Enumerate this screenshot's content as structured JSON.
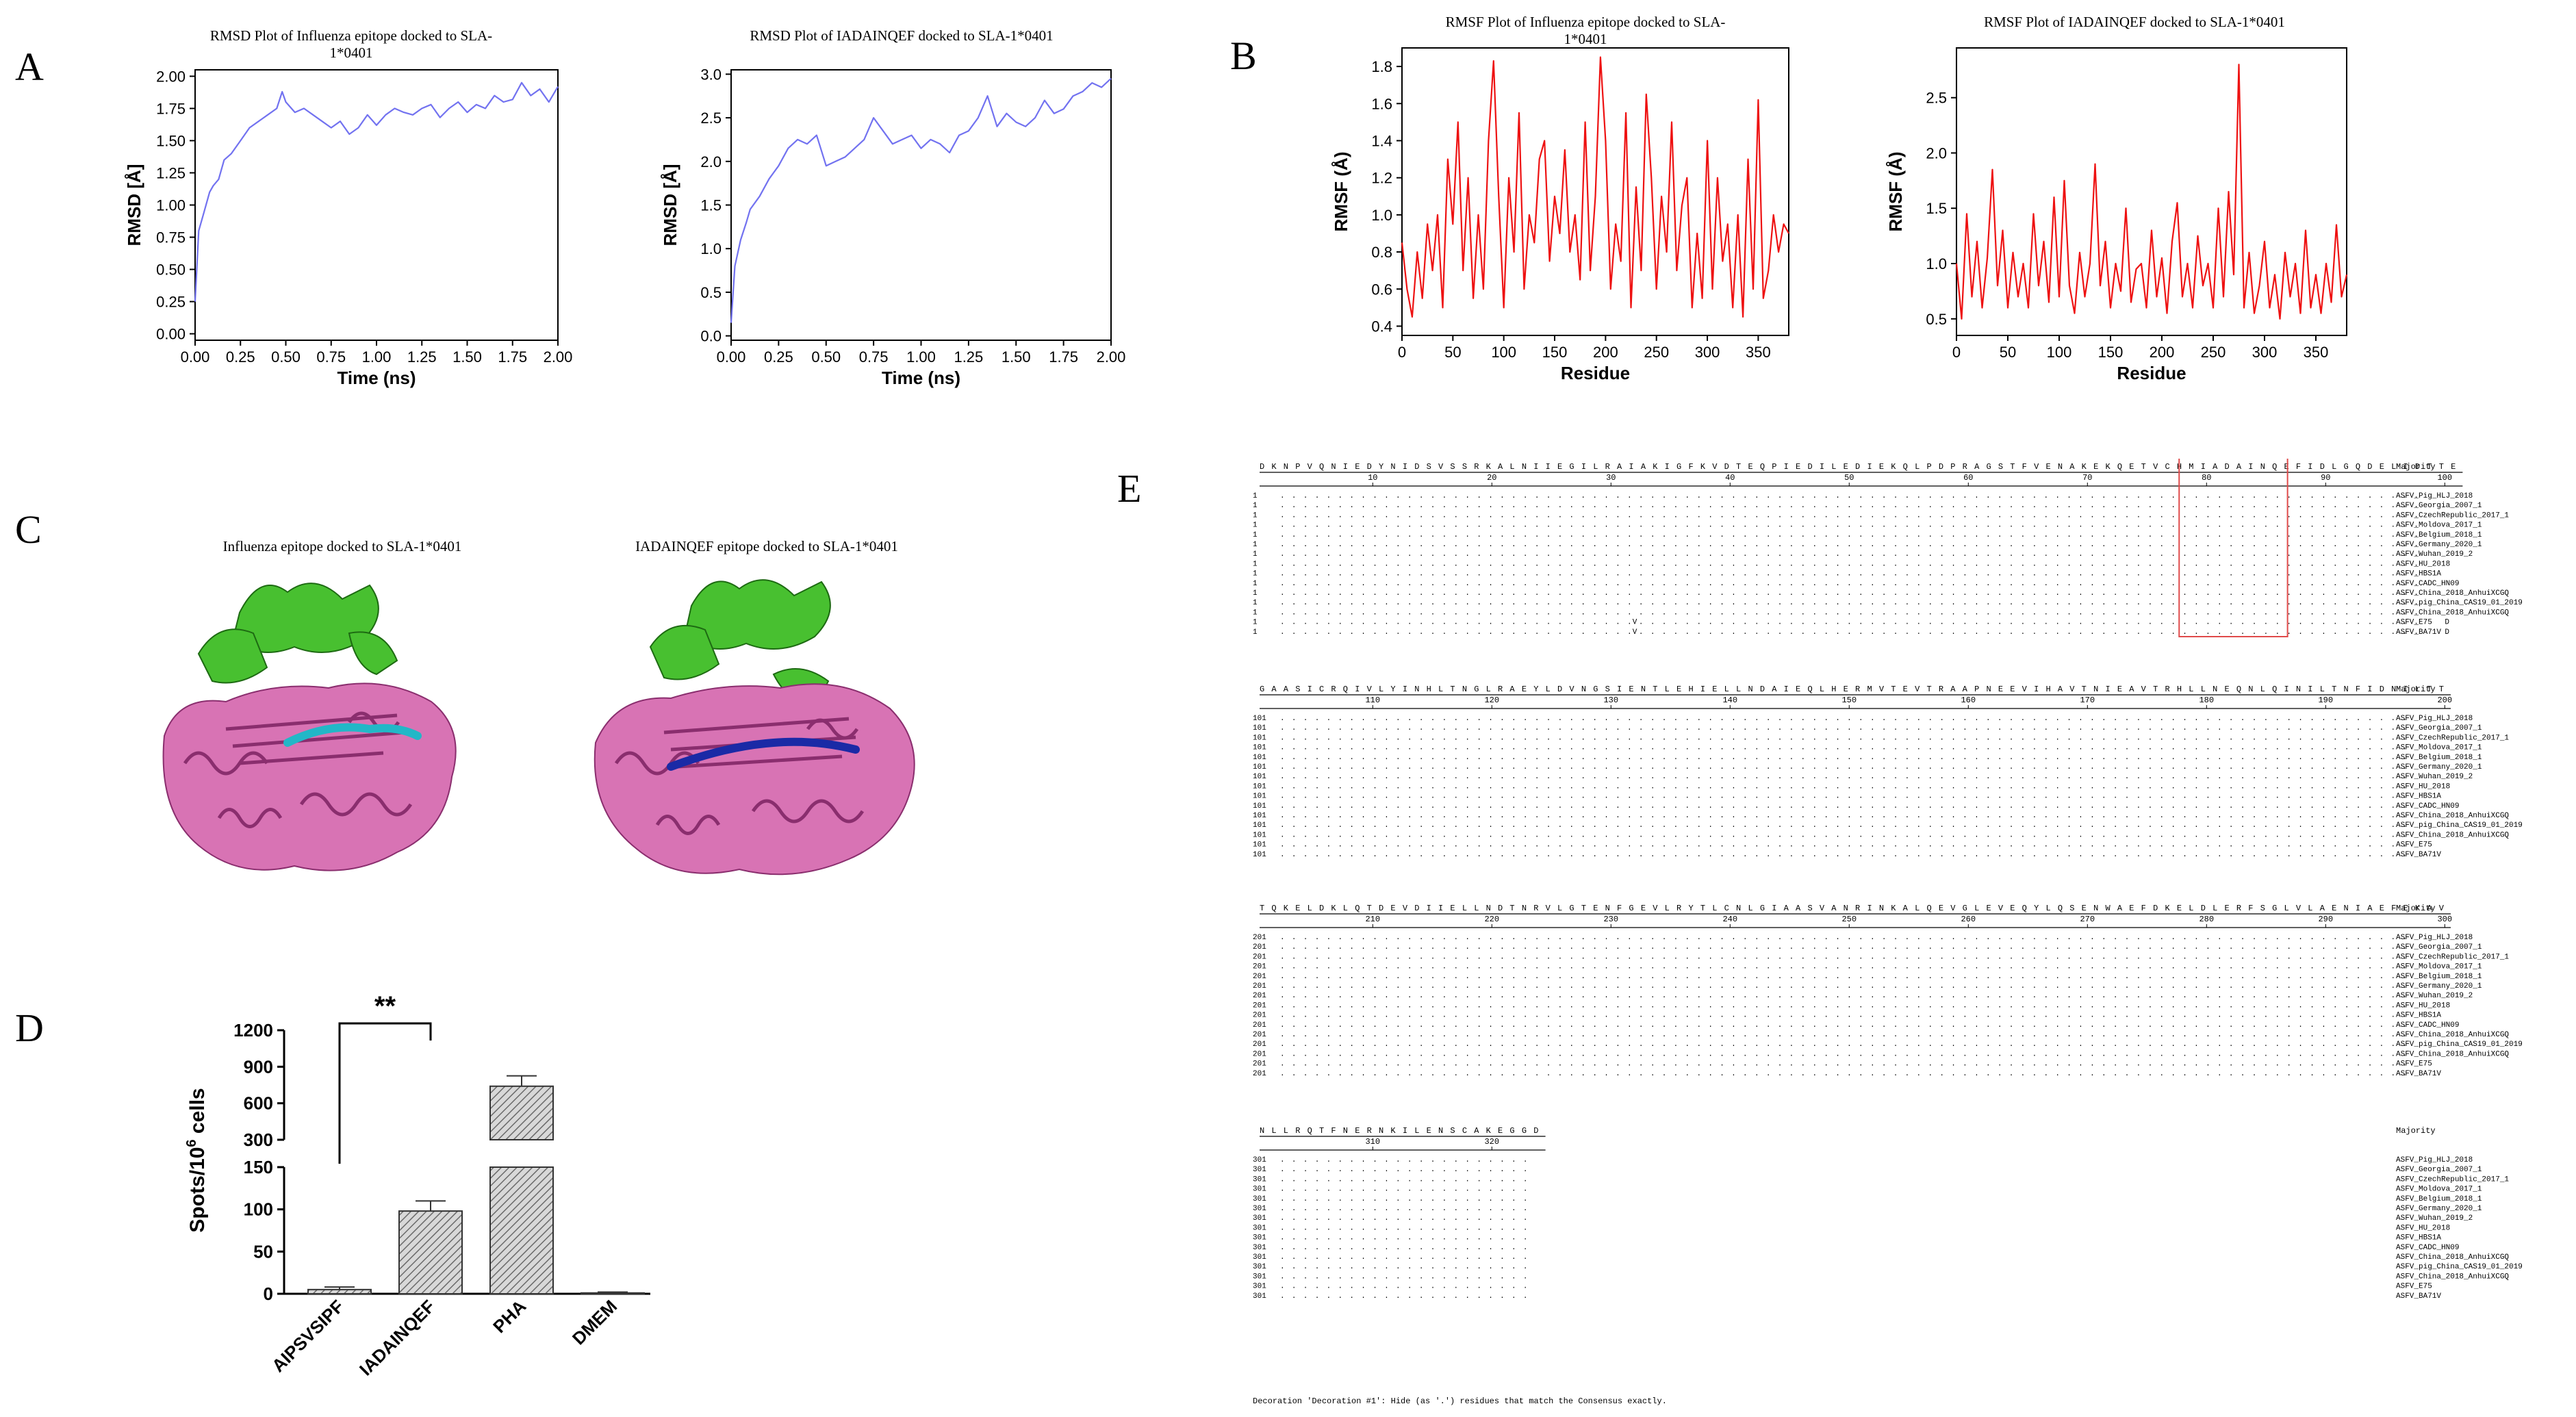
{
  "panels": {
    "A": {
      "letter": "A",
      "plots": [
        {
          "title": "RMSD  Plot of Influenza  epitope docked to SLA-1*0401",
          "xlabel": "Time (ns)",
          "ylabel": "RMSD [Å]",
          "xticks": [
            "0.00",
            "0.25",
            "0.50",
            "0.75",
            "1.00",
            "1.25",
            "1.50",
            "1.75",
            "2.00"
          ],
          "yticks": [
            "0.00",
            "0.25",
            "0.50",
            "0.75",
            "1.00",
            "1.25",
            "1.50",
            "1.75",
            "2.00"
          ]
        },
        {
          "title": "RMSD  Plot of IADAINQEF  docked to SLA-1*0401",
          "xlabel": "Time (ns)",
          "ylabel": "RMSD [Å]",
          "xticks": [
            "0.00",
            "0.25",
            "0.50",
            "0.75",
            "1.00",
            "1.25",
            "1.50",
            "1.75",
            "2.00"
          ],
          "yticks": [
            "0.0",
            "0.5",
            "1.0",
            "1.5",
            "2.0",
            "2.5",
            "3.0"
          ]
        }
      ]
    },
    "B": {
      "letter": "B",
      "plots": [
        {
          "title": "RMSF  Plot of Influenza  epitope docked to SLA-1*0401",
          "xlabel": "Residue",
          "ylabel": "RMSF (Å)",
          "xticks": [
            "0",
            "50",
            "100",
            "150",
            "200",
            "250",
            "300",
            "350"
          ],
          "yticks": [
            "0.4",
            "0.6",
            "0.8",
            "1.0",
            "1.2",
            "1.4",
            "1.6",
            "1.8"
          ]
        },
        {
          "title": "RMSF  Plot of IADAINQEF  docked to SLA-1*0401",
          "xlabel": "Residue",
          "ylabel": "RMSF (Å)",
          "xticks": [
            "0",
            "50",
            "100",
            "150",
            "200",
            "250",
            "300",
            "350"
          ],
          "yticks": [
            "0.5",
            "1.0",
            "1.5",
            "2.0",
            "2.5"
          ]
        }
      ]
    },
    "C": {
      "letter": "C",
      "captions": [
        "Influenza  epitope docked to SLA-1*0401",
        "IADAINQEF  epitope docked to SLA-1*0401"
      ]
    },
    "D": {
      "letter": "D",
      "significance": "**",
      "ylabel_main": "Spots/10",
      "ylabel_sup": "6",
      "ylabel_tail": " cells",
      "yticks_upper": [
        "300",
        "600",
        "900",
        "1200"
      ],
      "yticks_lower": [
        "0",
        "50",
        "100",
        "150"
      ],
      "categories": [
        "AIPSVSIPF",
        "IADAINQEF",
        "PHA",
        "DMEM"
      ]
    },
    "E": {
      "letter": "E",
      "majority_label": "Majority",
      "blocks": [
        {
          "start": "1",
          "consensus": "DKNPVQNIEDYNIDSVSSRKALNIIEGILRAIAKIGFKVDTEQPIEDILEDIEKQLPDPRAGSTFVENAKEKQETVCHMIADAINQEFIDLGQDELIDTTE",
          "ticks": [
            "10",
            "20",
            "30",
            "40",
            "50",
            "60",
            "70",
            "80",
            "90",
            "100"
          ]
        },
        {
          "start": "101",
          "consensus": "GAASICRQIVLYINHLTNGLRAEYLDVNGSIENTLEHIELLNDAIEQLHERMVTEVTRAAPNEEVIHAVTNIEAVTRHLLNEQNLQINILTNFIDNILTT",
          "ticks": [
            "110",
            "120",
            "130",
            "140",
            "150",
            "160",
            "170",
            "180",
            "190",
            "200"
          ]
        },
        {
          "start": "201",
          "consensus": "TQKELDKLQTDEVDIIELLNDTNRVLGTENFGEVLRYTLCNLGIAASVANRINKALQEVGLEVEQYLQSENWAEFDKELDLERFSGLVLAENIAEFEKAV",
          "ticks": [
            "210",
            "220",
            "230",
            "240",
            "250",
            "260",
            "270",
            "280",
            "290",
            "300"
          ]
        },
        {
          "start": "301",
          "consensus": "NLLRQTFNERNKILENSCAKEGGD",
          "ticks": [
            "310",
            "320"
          ]
        }
      ],
      "strains": [
        "ASFV_Pig_HLJ_2018",
        "ASFV_Georgia_2007_1",
        "ASFV_CzechRepublic_2017_1",
        "ASFV_Moldova_2017_1",
        "ASFV_Belgium_2018_1",
        "ASFV_Germany_2020_1",
        "ASFV_Wuhan_2019_2",
        "ASFV_HU_2018",
        "ASFV_HBS1A",
        "ASFV_CADC_HN09",
        "ASFV_China_2018_AnhuiXCGQ",
        "ASFV_pig_China_CAS19_01_2019",
        "ASFV_China_2018_AnhuiXCGQ",
        "ASFV_E75",
        "ASFV_BA71V"
      ],
      "variants_block1": {
        "rows": [
          13,
          14
        ],
        "v_label": "V",
        "d_label": "D"
      },
      "footer": "Decoration 'Decoration #1': Hide (as '.') residues that match the Consensus exactly."
    }
  },
  "chart_data": [
    {
      "type": "line",
      "title": "RMSD  Plot of Influenza  epitope docked to SLA-1*0401",
      "xlabel": "Time (ns)",
      "ylabel": "RMSD [Å]",
      "xlim": [
        0,
        2
      ],
      "ylim": [
        -0.05,
        2.05
      ],
      "color": "#7272f0",
      "x": [
        0,
        0.02,
        0.05,
        0.08,
        0.1,
        0.13,
        0.16,
        0.2,
        0.25,
        0.3,
        0.35,
        0.4,
        0.45,
        0.48,
        0.5,
        0.55,
        0.6,
        0.65,
        0.7,
        0.75,
        0.8,
        0.85,
        0.9,
        0.95,
        1.0,
        1.05,
        1.1,
        1.15,
        1.2,
        1.25,
        1.3,
        1.35,
        1.4,
        1.45,
        1.5,
        1.55,
        1.6,
        1.65,
        1.7,
        1.75,
        1.8,
        1.85,
        1.9,
        1.95,
        2.0
      ],
      "y": [
        0.25,
        0.8,
        0.95,
        1.1,
        1.15,
        1.2,
        1.35,
        1.4,
        1.5,
        1.6,
        1.65,
        1.7,
        1.75,
        1.88,
        1.8,
        1.72,
        1.75,
        1.7,
        1.65,
        1.6,
        1.65,
        1.55,
        1.6,
        1.7,
        1.62,
        1.7,
        1.75,
        1.72,
        1.7,
        1.75,
        1.78,
        1.68,
        1.75,
        1.8,
        1.72,
        1.78,
        1.75,
        1.85,
        1.8,
        1.82,
        1.95,
        1.85,
        1.9,
        1.8,
        1.92
      ]
    },
    {
      "type": "line",
      "title": "RMSD  Plot of IADAINQEF  docked to SLA-1*0401",
      "xlabel": "Time (ns)",
      "ylabel": "RMSD [Å]",
      "xlim": [
        0,
        2
      ],
      "ylim": [
        -0.05,
        3.05
      ],
      "color": "#7272f0",
      "x": [
        0,
        0.02,
        0.05,
        0.08,
        0.1,
        0.15,
        0.2,
        0.25,
        0.3,
        0.35,
        0.4,
        0.45,
        0.5,
        0.55,
        0.6,
        0.65,
        0.7,
        0.75,
        0.8,
        0.85,
        0.9,
        0.95,
        1.0,
        1.05,
        1.1,
        1.15,
        1.2,
        1.25,
        1.3,
        1.35,
        1.4,
        1.45,
        1.5,
        1.55,
        1.6,
        1.65,
        1.7,
        1.75,
        1.8,
        1.85,
        1.9,
        1.95,
        2.0
      ],
      "y": [
        0.15,
        0.8,
        1.1,
        1.3,
        1.45,
        1.6,
        1.8,
        1.95,
        2.15,
        2.25,
        2.2,
        2.3,
        1.95,
        2.0,
        2.05,
        2.15,
        2.25,
        2.5,
        2.35,
        2.2,
        2.25,
        2.3,
        2.15,
        2.25,
        2.2,
        2.1,
        2.3,
        2.35,
        2.5,
        2.75,
        2.4,
        2.55,
        2.45,
        2.4,
        2.5,
        2.7,
        2.55,
        2.6,
        2.75,
        2.8,
        2.9,
        2.85,
        2.95
      ]
    },
    {
      "type": "line",
      "title": "RMSF  Plot of Influenza  epitope docked to SLA-1*0401",
      "xlabel": "Residue",
      "ylabel": "RMSF (Å)",
      "xlim": [
        0,
        380
      ],
      "ylim": [
        0.35,
        1.9
      ],
      "color": "#ee1111",
      "x": [
        0,
        5,
        10,
        15,
        20,
        25,
        30,
        35,
        40,
        45,
        50,
        55,
        60,
        65,
        70,
        75,
        80,
        85,
        90,
        95,
        100,
        105,
        110,
        115,
        120,
        125,
        130,
        135,
        140,
        145,
        150,
        155,
        160,
        165,
        170,
        175,
        180,
        185,
        190,
        195,
        200,
        205,
        210,
        215,
        220,
        225,
        230,
        235,
        240,
        245,
        250,
        255,
        260,
        265,
        270,
        275,
        280,
        285,
        290,
        295,
        300,
        305,
        310,
        315,
        320,
        325,
        330,
        335,
        340,
        345,
        350,
        355,
        360,
        365,
        370,
        375,
        380
      ],
      "y": [
        0.85,
        0.6,
        0.45,
        0.8,
        0.55,
        0.95,
        0.7,
        1.0,
        0.5,
        1.3,
        0.95,
        1.5,
        0.7,
        1.2,
        0.55,
        1.0,
        0.6,
        1.4,
        1.83,
        1.1,
        0.5,
        1.2,
        0.8,
        1.55,
        0.6,
        1.0,
        0.85,
        1.3,
        1.4,
        0.75,
        1.1,
        0.9,
        1.35,
        0.8,
        1.0,
        0.65,
        1.5,
        0.7,
        1.1,
        1.85,
        1.4,
        0.6,
        0.95,
        0.75,
        1.55,
        0.5,
        1.15,
        0.7,
        1.65,
        1.2,
        0.6,
        1.1,
        0.8,
        1.5,
        0.7,
        1.05,
        1.2,
        0.5,
        0.9,
        0.55,
        1.4,
        0.6,
        1.2,
        0.75,
        0.95,
        0.5,
        1.0,
        0.45,
        1.3,
        0.6,
        1.62,
        0.55,
        0.7,
        1.0,
        0.8,
        0.95,
        0.9
      ]
    },
    {
      "type": "line",
      "title": "RMSF  Plot of IADAINQEF  docked to SLA-1*0401",
      "xlabel": "Residue",
      "ylabel": "RMSF (Å)",
      "xlim": [
        0,
        380
      ],
      "ylim": [
        0.35,
        2.95
      ],
      "color": "#ee1111",
      "x": [
        0,
        5,
        10,
        15,
        20,
        25,
        30,
        35,
        40,
        45,
        50,
        55,
        60,
        65,
        70,
        75,
        80,
        85,
        90,
        95,
        100,
        105,
        110,
        115,
        120,
        125,
        130,
        135,
        140,
        145,
        150,
        155,
        160,
        165,
        170,
        175,
        180,
        185,
        190,
        195,
        200,
        205,
        210,
        215,
        220,
        225,
        230,
        235,
        240,
        245,
        250,
        255,
        260,
        265,
        270,
        275,
        280,
        285,
        290,
        295,
        300,
        305,
        310,
        315,
        320,
        325,
        330,
        335,
        340,
        345,
        350,
        355,
        360,
        365,
        370,
        375,
        380
      ],
      "y": [
        1.0,
        0.5,
        1.45,
        0.7,
        1.2,
        0.6,
        1.05,
        1.85,
        0.8,
        1.3,
        0.6,
        1.1,
        0.7,
        1.0,
        0.6,
        1.45,
        0.8,
        1.2,
        0.65,
        1.6,
        0.7,
        1.75,
        0.8,
        0.55,
        1.1,
        0.7,
        1.0,
        1.9,
        0.8,
        1.2,
        0.6,
        1.0,
        0.75,
        1.5,
        0.65,
        0.95,
        1.0,
        0.6,
        1.3,
        0.7,
        1.05,
        0.55,
        1.2,
        1.55,
        0.7,
        1.0,
        0.6,
        1.25,
        0.8,
        1.0,
        0.6,
        1.5,
        0.7,
        1.65,
        0.9,
        2.8,
        0.6,
        1.1,
        0.55,
        0.8,
        1.2,
        0.6,
        0.9,
        0.5,
        1.1,
        0.7,
        1.0,
        0.55,
        1.3,
        0.6,
        0.9,
        0.55,
        1.0,
        0.65,
        1.35,
        0.7,
        0.9
      ]
    },
    {
      "type": "bar",
      "title": "",
      "xlabel": "",
      "ylabel": "Spots/10^6 cells",
      "categories": [
        "AIPSVSIPF",
        "IADAINQEF",
        "PHA",
        "DMEM"
      ],
      "values": [
        5,
        98,
        740,
        1
      ],
      "errors": [
        3,
        12,
        85,
        1
      ],
      "ylim": [
        0,
        1200
      ],
      "axis_break": [
        150,
        300
      ],
      "significance": {
        "pair": [
          "AIPSVSIPF",
          "IADAINQEF"
        ],
        "label": "**"
      }
    }
  ]
}
